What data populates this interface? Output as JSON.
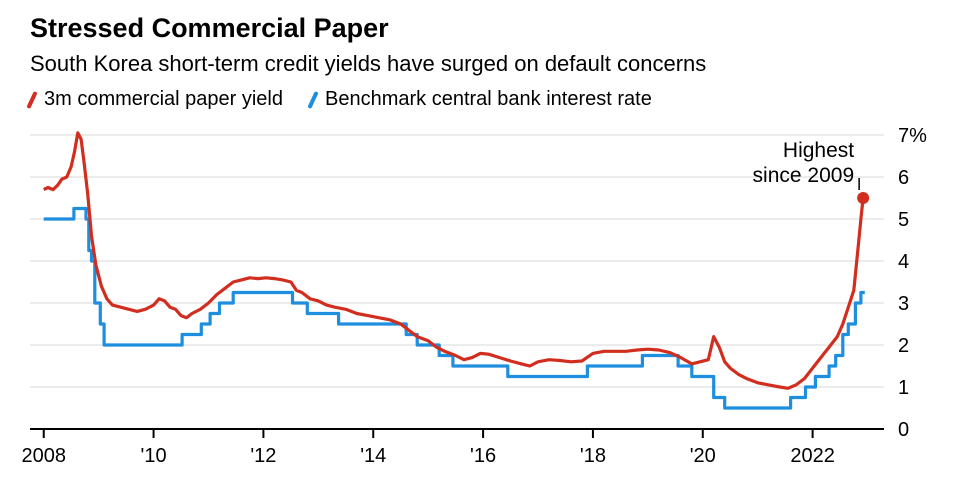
{
  "header": {
    "title": "Stressed Commercial Paper",
    "subtitle": "South Korea short-term credit yields have surged on default concerns"
  },
  "legend": [
    {
      "label": "3m commercial paper yield",
      "color": "#d12e1f"
    },
    {
      "label": "Benchmark central bank interest rate",
      "color": "#1e8ede"
    }
  ],
  "annotation": {
    "line1": "Highest",
    "line2": "since 2009"
  },
  "chart_data": {
    "type": "line",
    "title": "Stressed Commercial Paper",
    "subtitle": "South Korea short-term credit yields have surged on default concerns",
    "grid": "horizontal",
    "grid_color": "#d9d9d9",
    "axis_color": "#000000",
    "legend_position": "top",
    "x_axis": {
      "min": 2007.75,
      "max": 2023.3,
      "tick_positions": [
        2008,
        2010,
        2012,
        2014,
        2016,
        2018,
        2020,
        2022
      ],
      "tick_labels": [
        "2008",
        "'10",
        "'12",
        "'14",
        "'16",
        "'18",
        "'20",
        "2022"
      ]
    },
    "y_axis": {
      "min": 0,
      "max": 7,
      "position": "right",
      "ticks": [
        0,
        1,
        2,
        3,
        4,
        5,
        6,
        7
      ],
      "tick_labels": [
        "0",
        "1",
        "2",
        "3",
        "4",
        "5",
        "6",
        "7%"
      ]
    },
    "series": [
      {
        "id": "cp_yield",
        "name": "3m commercial paper yield",
        "color": "#d12e1f",
        "end_marker": true,
        "points": [
          [
            2008.0,
            5.7
          ],
          [
            2008.08,
            5.75
          ],
          [
            2008.17,
            5.7
          ],
          [
            2008.25,
            5.8
          ],
          [
            2008.33,
            5.95
          ],
          [
            2008.42,
            6.0
          ],
          [
            2008.5,
            6.25
          ],
          [
            2008.56,
            6.6
          ],
          [
            2008.62,
            7.05
          ],
          [
            2008.68,
            6.9
          ],
          [
            2008.73,
            6.4
          ],
          [
            2008.8,
            5.6
          ],
          [
            2008.87,
            4.6
          ],
          [
            2008.95,
            3.9
          ],
          [
            2009.05,
            3.4
          ],
          [
            2009.15,
            3.1
          ],
          [
            2009.25,
            2.95
          ],
          [
            2009.4,
            2.9
          ],
          [
            2009.55,
            2.85
          ],
          [
            2009.7,
            2.8
          ],
          [
            2009.85,
            2.85
          ],
          [
            2010.0,
            2.95
          ],
          [
            2010.1,
            3.1
          ],
          [
            2010.2,
            3.05
          ],
          [
            2010.3,
            2.9
          ],
          [
            2010.4,
            2.85
          ],
          [
            2010.5,
            2.7
          ],
          [
            2010.6,
            2.65
          ],
          [
            2010.7,
            2.75
          ],
          [
            2010.85,
            2.85
          ],
          [
            2011.0,
            3.0
          ],
          [
            2011.15,
            3.2
          ],
          [
            2011.3,
            3.35
          ],
          [
            2011.45,
            3.5
          ],
          [
            2011.6,
            3.55
          ],
          [
            2011.75,
            3.6
          ],
          [
            2011.9,
            3.58
          ],
          [
            2012.05,
            3.6
          ],
          [
            2012.2,
            3.58
          ],
          [
            2012.35,
            3.55
          ],
          [
            2012.5,
            3.5
          ],
          [
            2012.6,
            3.3
          ],
          [
            2012.7,
            3.25
          ],
          [
            2012.85,
            3.1
          ],
          [
            2013.0,
            3.05
          ],
          [
            2013.15,
            2.95
          ],
          [
            2013.3,
            2.9
          ],
          [
            2013.5,
            2.85
          ],
          [
            2013.7,
            2.75
          ],
          [
            2013.9,
            2.7
          ],
          [
            2014.1,
            2.65
          ],
          [
            2014.3,
            2.6
          ],
          [
            2014.5,
            2.5
          ],
          [
            2014.65,
            2.35
          ],
          [
            2014.8,
            2.2
          ],
          [
            2015.0,
            2.1
          ],
          [
            2015.15,
            1.95
          ],
          [
            2015.3,
            1.85
          ],
          [
            2015.5,
            1.75
          ],
          [
            2015.65,
            1.65
          ],
          [
            2015.8,
            1.7
          ],
          [
            2015.95,
            1.8
          ],
          [
            2016.1,
            1.78
          ],
          [
            2016.3,
            1.7
          ],
          [
            2016.5,
            1.62
          ],
          [
            2016.7,
            1.55
          ],
          [
            2016.85,
            1.5
          ],
          [
            2017.0,
            1.6
          ],
          [
            2017.2,
            1.65
          ],
          [
            2017.4,
            1.63
          ],
          [
            2017.6,
            1.6
          ],
          [
            2017.8,
            1.62
          ],
          [
            2018.0,
            1.8
          ],
          [
            2018.2,
            1.85
          ],
          [
            2018.4,
            1.85
          ],
          [
            2018.6,
            1.85
          ],
          [
            2018.8,
            1.88
          ],
          [
            2019.0,
            1.9
          ],
          [
            2019.2,
            1.88
          ],
          [
            2019.4,
            1.82
          ],
          [
            2019.6,
            1.7
          ],
          [
            2019.8,
            1.55
          ],
          [
            2019.95,
            1.6
          ],
          [
            2020.1,
            1.65
          ],
          [
            2020.2,
            2.2
          ],
          [
            2020.3,
            1.95
          ],
          [
            2020.4,
            1.6
          ],
          [
            2020.5,
            1.45
          ],
          [
            2020.65,
            1.3
          ],
          [
            2020.8,
            1.2
          ],
          [
            2021.0,
            1.1
          ],
          [
            2021.2,
            1.05
          ],
          [
            2021.4,
            1.0
          ],
          [
            2021.55,
            0.97
          ],
          [
            2021.7,
            1.05
          ],
          [
            2021.85,
            1.2
          ],
          [
            2022.0,
            1.45
          ],
          [
            2022.15,
            1.7
          ],
          [
            2022.3,
            1.95
          ],
          [
            2022.45,
            2.2
          ],
          [
            2022.55,
            2.5
          ],
          [
            2022.65,
            2.9
          ],
          [
            2022.75,
            3.3
          ],
          [
            2022.82,
            4.2
          ],
          [
            2022.88,
            5.0
          ],
          [
            2022.92,
            5.5
          ]
        ]
      },
      {
        "id": "policy_rate",
        "name": "Benchmark central bank interest rate",
        "color": "#1e8ede",
        "end_marker": false,
        "points": [
          [
            2008.0,
            5.0
          ],
          [
            2008.55,
            5.0
          ],
          [
            2008.55,
            5.25
          ],
          [
            2008.77,
            5.25
          ],
          [
            2008.77,
            5.0
          ],
          [
            2008.82,
            5.0
          ],
          [
            2008.82,
            4.25
          ],
          [
            2008.87,
            4.25
          ],
          [
            2008.87,
            4.0
          ],
          [
            2008.93,
            4.0
          ],
          [
            2008.93,
            3.0
          ],
          [
            2009.03,
            3.0
          ],
          [
            2009.03,
            2.5
          ],
          [
            2009.1,
            2.5
          ],
          [
            2009.1,
            2.0
          ],
          [
            2010.52,
            2.0
          ],
          [
            2010.52,
            2.25
          ],
          [
            2010.87,
            2.25
          ],
          [
            2010.87,
            2.5
          ],
          [
            2011.03,
            2.5
          ],
          [
            2011.03,
            2.75
          ],
          [
            2011.2,
            2.75
          ],
          [
            2011.2,
            3.0
          ],
          [
            2011.45,
            3.0
          ],
          [
            2011.45,
            3.25
          ],
          [
            2012.53,
            3.25
          ],
          [
            2012.53,
            3.0
          ],
          [
            2012.8,
            3.0
          ],
          [
            2012.8,
            2.75
          ],
          [
            2013.37,
            2.75
          ],
          [
            2013.37,
            2.5
          ],
          [
            2014.6,
            2.5
          ],
          [
            2014.6,
            2.25
          ],
          [
            2014.8,
            2.25
          ],
          [
            2014.8,
            2.0
          ],
          [
            2015.2,
            2.0
          ],
          [
            2015.2,
            1.75
          ],
          [
            2015.45,
            1.75
          ],
          [
            2015.45,
            1.5
          ],
          [
            2016.45,
            1.5
          ],
          [
            2016.45,
            1.25
          ],
          [
            2017.9,
            1.25
          ],
          [
            2017.9,
            1.5
          ],
          [
            2018.9,
            1.5
          ],
          [
            2018.9,
            1.75
          ],
          [
            2019.55,
            1.75
          ],
          [
            2019.55,
            1.5
          ],
          [
            2019.8,
            1.5
          ],
          [
            2019.8,
            1.25
          ],
          [
            2020.2,
            1.25
          ],
          [
            2020.2,
            0.75
          ],
          [
            2020.4,
            0.75
          ],
          [
            2020.4,
            0.5
          ],
          [
            2021.6,
            0.5
          ],
          [
            2021.6,
            0.75
          ],
          [
            2021.87,
            0.75
          ],
          [
            2021.87,
            1.0
          ],
          [
            2022.05,
            1.0
          ],
          [
            2022.05,
            1.25
          ],
          [
            2022.3,
            1.25
          ],
          [
            2022.3,
            1.5
          ],
          [
            2022.42,
            1.5
          ],
          [
            2022.42,
            1.75
          ],
          [
            2022.55,
            1.75
          ],
          [
            2022.55,
            2.25
          ],
          [
            2022.65,
            2.25
          ],
          [
            2022.65,
            2.5
          ],
          [
            2022.78,
            2.5
          ],
          [
            2022.78,
            3.0
          ],
          [
            2022.88,
            3.0
          ],
          [
            2022.88,
            3.25
          ],
          [
            2022.95,
            3.25
          ]
        ]
      }
    ]
  }
}
